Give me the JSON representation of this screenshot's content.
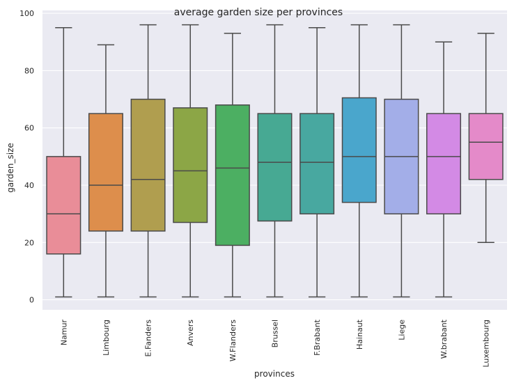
{
  "chart_data": {
    "type": "box",
    "title": "average garden size per provinces",
    "xlabel": "provinces",
    "ylabel": "garden_size",
    "ylim": [
      -3.5,
      101
    ],
    "yticks": [
      "0",
      "20",
      "40",
      "60",
      "80",
      "100"
    ],
    "grid": true,
    "categories": [
      "Namur",
      "Limbourg",
      "E.Fanders",
      "Anvers",
      "W.Flanders",
      "Brussel",
      "F.Brabant",
      "Hainaut",
      "Liege",
      "W.brabant",
      "Luxembourg"
    ],
    "boxes": [
      {
        "min": 1,
        "q1": 16,
        "median": 30,
        "q3": 50,
        "max": 95
      },
      {
        "min": 1,
        "q1": 24,
        "median": 40,
        "q3": 65,
        "max": 89
      },
      {
        "min": 1,
        "q1": 24,
        "median": 42,
        "q3": 70,
        "max": 96
      },
      {
        "min": 1,
        "q1": 27,
        "median": 45,
        "q3": 67,
        "max": 96
      },
      {
        "min": 1,
        "q1": 19,
        "median": 46,
        "q3": 68,
        "max": 93
      },
      {
        "min": 1,
        "q1": 27.5,
        "median": 48,
        "q3": 65,
        "max": 96
      },
      {
        "min": 1,
        "q1": 30,
        "median": 48,
        "q3": 65,
        "max": 95
      },
      {
        "min": 1,
        "q1": 34,
        "median": 50,
        "q3": 70.5,
        "max": 96
      },
      {
        "min": 1,
        "q1": 30,
        "median": 50,
        "q3": 70,
        "max": 96
      },
      {
        "min": 1,
        "q1": 30,
        "median": 50,
        "q3": 65,
        "max": 90
      },
      {
        "min": 20,
        "q1": 42,
        "median": 55,
        "q3": 65,
        "max": 93
      }
    ],
    "colors": [
      "#e98d98",
      "#dd8e4c",
      "#b09e4f",
      "#8ca646",
      "#4caf62",
      "#47a993",
      "#48a8a0",
      "#4aa6cc",
      "#a3aee8",
      "#d38ae5",
      "#e48ac9"
    ],
    "style": {
      "background": "#eaeaf2",
      "gridcolor": "#ffffff",
      "linecolor": "#4a4a4a"
    }
  }
}
